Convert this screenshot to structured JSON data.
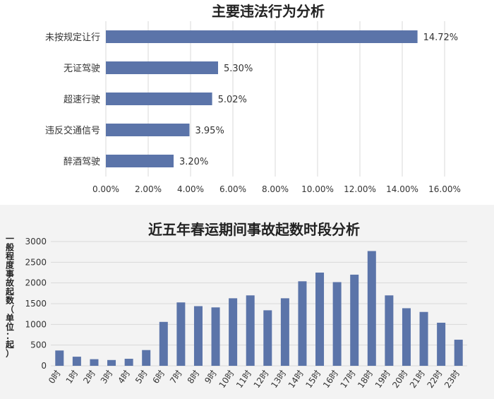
{
  "chart_data": [
    {
      "type": "bar",
      "orientation": "horizontal",
      "title": "主要违法行为分析",
      "categories": [
        "未按规定让行",
        "无证驾驶",
        "超速行驶",
        "违反交通信号",
        "醉酒驾驶"
      ],
      "values": [
        14.72,
        5.3,
        5.02,
        3.95,
        3.2
      ],
      "value_labels": [
        "14.72%",
        "5.30%",
        "5.02%",
        "3.95%",
        "3.20%"
      ],
      "xlim": [
        0,
        16
      ],
      "xticks": [
        "0.00%",
        "2.00%",
        "4.00%",
        "6.00%",
        "8.00%",
        "10.00%",
        "12.00%",
        "14.00%",
        "16.00%"
      ],
      "grid": true,
      "color": "#5b74a9"
    },
    {
      "type": "bar",
      "title": "近五年春运期间事故起数时段分析",
      "ylabel": "一般程度事故起数（单位：起）",
      "categories": [
        "0时",
        "1时",
        "2时",
        "3时",
        "4时",
        "5时",
        "6时",
        "7时",
        "8时",
        "9时",
        "10时",
        "11时",
        "12时",
        "13时",
        "14时",
        "15时",
        "16时",
        "17时",
        "18时",
        "19时",
        "20时",
        "21时",
        "22时",
        "23时"
      ],
      "values": [
        370,
        220,
        160,
        140,
        170,
        380,
        1060,
        1530,
        1440,
        1410,
        1630,
        1700,
        1340,
        1630,
        2040,
        2250,
        2020,
        2200,
        2770,
        1700,
        1390,
        1300,
        1040,
        630
      ],
      "ylim": [
        0,
        3000
      ],
      "yticks": [
        "0",
        "500",
        "1000",
        "1500",
        "2000",
        "2500",
        "3000"
      ],
      "grid": true,
      "color": "#5b74a9"
    }
  ]
}
